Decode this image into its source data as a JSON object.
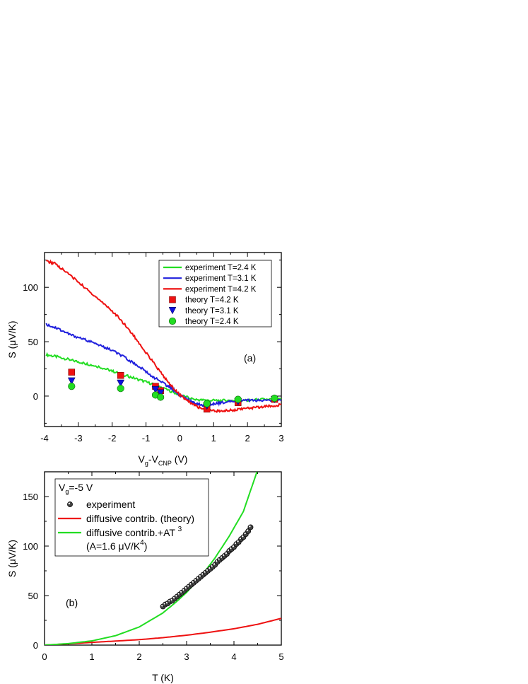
{
  "chart_data": [
    {
      "id": "a",
      "type": "line",
      "panel_label": "(a)",
      "xlabel": "Vg-VCNP (V)",
      "ylabel": "S (μV/K)",
      "xlim": [
        -4,
        3
      ],
      "ylim": [
        -28,
        132
      ],
      "xticks": [
        -4,
        -3,
        -2,
        -1,
        0,
        1,
        2,
        3
      ],
      "yticks": [
        0,
        50,
        100
      ],
      "legend_position": "top-right",
      "series": [
        {
          "name": "experiment T=2.4 K",
          "kind": "line",
          "color": "#22dd22",
          "x": [
            -3.95,
            -3.6,
            -3.2,
            -2.8,
            -2.4,
            -2.0,
            -1.6,
            -1.2,
            -0.8,
            -0.4,
            0.0,
            0.4,
            0.8,
            1.2,
            1.6,
            2.0,
            2.4,
            3.0
          ],
          "y": [
            38,
            36,
            33,
            30,
            27,
            23,
            19,
            15,
            11,
            6,
            1,
            -3,
            -4,
            -4,
            -4,
            -4,
            -3,
            -3
          ]
        },
        {
          "name": "experiment T=3.1 K",
          "kind": "line",
          "color": "#2020dd",
          "x": [
            -3.95,
            -3.6,
            -3.2,
            -2.8,
            -2.4,
            -2.0,
            -1.6,
            -1.2,
            -0.8,
            -0.4,
            -0.2,
            0.0,
            0.2,
            0.4,
            0.6,
            0.8,
            1.0,
            1.2,
            1.6,
            2.0,
            2.4,
            3.0
          ],
          "y": [
            66,
            62,
            56,
            52,
            47,
            42,
            35,
            27,
            18,
            10,
            6,
            1,
            -3,
            -6,
            -8,
            -8,
            -7,
            -6,
            -5,
            -4,
            -4,
            -4
          ]
        },
        {
          "name": "experiment T=4.2 K",
          "kind": "line",
          "color": "#ee1111",
          "x": [
            -3.95,
            -3.7,
            -3.4,
            -3.0,
            -2.6,
            -2.2,
            -1.8,
            -1.4,
            -1.0,
            -0.6,
            -0.3,
            0.0,
            0.3,
            0.6,
            0.9,
            1.2,
            1.5,
            1.8,
            2.1,
            2.4,
            2.7,
            3.0
          ],
          "y": [
            124,
            122,
            115,
            105,
            94,
            84,
            72,
            57,
            40,
            23,
            11,
            1,
            -6,
            -11,
            -13,
            -14,
            -13,
            -12,
            -11,
            -10,
            -9,
            -8
          ]
        },
        {
          "name": "theory T=4.2 K",
          "kind": "square",
          "color": "#ee1111",
          "x": [
            -3.2,
            -1.75,
            -0.72,
            -0.57,
            0.8,
            1.72,
            2.8
          ],
          "y": [
            22,
            19,
            9,
            5,
            -12,
            -6,
            -3
          ]
        },
        {
          "name": "theory T=3.1 K",
          "kind": "triangle-down",
          "color": "#1010dd",
          "x": [
            -3.2,
            -1.75,
            -0.72,
            -0.57,
            0.8,
            1.72,
            2.8
          ],
          "y": [
            14,
            12,
            6,
            3,
            -9,
            -5,
            -3
          ]
        },
        {
          "name": "theory T=2.4 K",
          "kind": "circle",
          "color": "#22dd22",
          "x": [
            -3.2,
            -1.75,
            -0.72,
            -0.57,
            0.8,
            1.72,
            2.8
          ],
          "y": [
            9,
            7,
            1,
            -1,
            -7,
            -3,
            -2
          ]
        }
      ]
    },
    {
      "id": "b",
      "type": "line",
      "panel_label": "(b)",
      "xlabel": "T (K)",
      "ylabel": "S (μV/K)",
      "xlim": [
        0,
        5
      ],
      "ylim": [
        0,
        175
      ],
      "xticks": [
        0,
        1,
        2,
        3,
        4,
        5
      ],
      "yticks": [
        0,
        50,
        100,
        150
      ],
      "legend_position": "top-left",
      "annotation": "Vg=-5 V",
      "legend_note": "(A=1.6  μV/K4)",
      "series": [
        {
          "name": "experiment",
          "kind": "scatter-ball",
          "color": "#333333",
          "x": [
            2.5,
            2.55,
            2.6,
            2.65,
            2.7,
            2.75,
            2.8,
            2.85,
            2.9,
            2.95,
            3.0,
            3.05,
            3.1,
            3.15,
            3.2,
            3.25,
            3.3,
            3.35,
            3.4,
            3.45,
            3.5,
            3.55,
            3.6,
            3.65,
            3.7,
            3.75,
            3.8,
            3.85,
            3.9,
            3.95,
            4.0,
            4.05,
            4.1,
            4.15,
            4.2,
            4.25,
            4.3,
            4.35
          ],
          "y": [
            39,
            41,
            42,
            44,
            45,
            47,
            49,
            51,
            53,
            55,
            57,
            59,
            61,
            63,
            65,
            67,
            69,
            71,
            73,
            75,
            77,
            79,
            81,
            84,
            86,
            88,
            90,
            92,
            95,
            97,
            99,
            102,
            104,
            107,
            109,
            112,
            115,
            119
          ]
        },
        {
          "name": "diffusive contrib. (theory)",
          "kind": "line",
          "color": "#ee1111",
          "x": [
            0,
            0.5,
            1.0,
            1.5,
            2.0,
            2.5,
            3.0,
            3.5,
            4.0,
            4.5,
            5.0
          ],
          "y": [
            0,
            1.3,
            2.7,
            4.1,
            5.5,
            7.5,
            10,
            13,
            16.5,
            21,
            27
          ]
        },
        {
          "name": "diffusive contrib.+AT 3",
          "kind": "line",
          "color": "#22dd22",
          "x": [
            0,
            0.5,
            1.0,
            1.5,
            2.0,
            2.5,
            2.8,
            3.0,
            3.3,
            3.6,
            3.9,
            4.2,
            4.5
          ],
          "y": [
            0,
            1.5,
            4.3,
            9.5,
            18.3,
            32.5,
            44.4,
            53.2,
            69,
            88,
            110,
            135,
            177
          ]
        }
      ]
    }
  ]
}
